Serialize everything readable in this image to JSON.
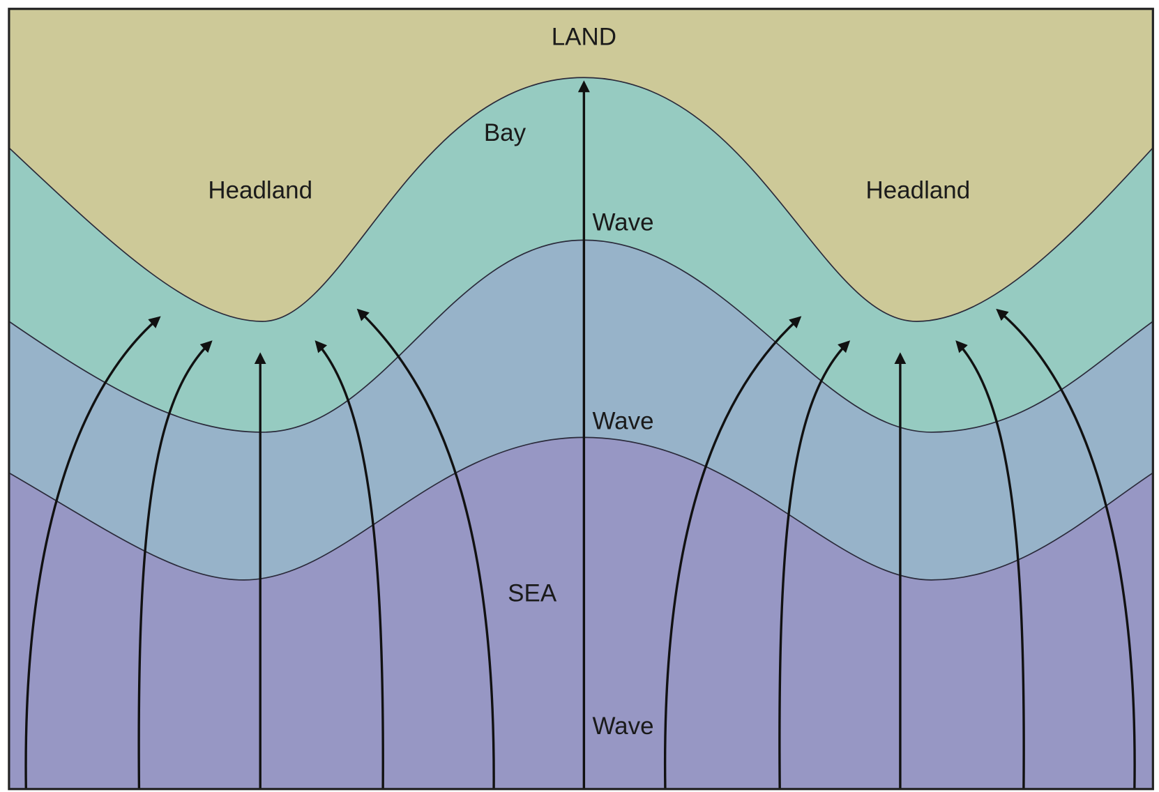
{
  "land": "LAND",
  "bay": "Bay",
  "headland_left": "Headland",
  "headland_right": "Headland",
  "wave_top": "Wave",
  "wave_middle": "Wave",
  "wave_bottom": "Wave",
  "sea": "SEA"
}
